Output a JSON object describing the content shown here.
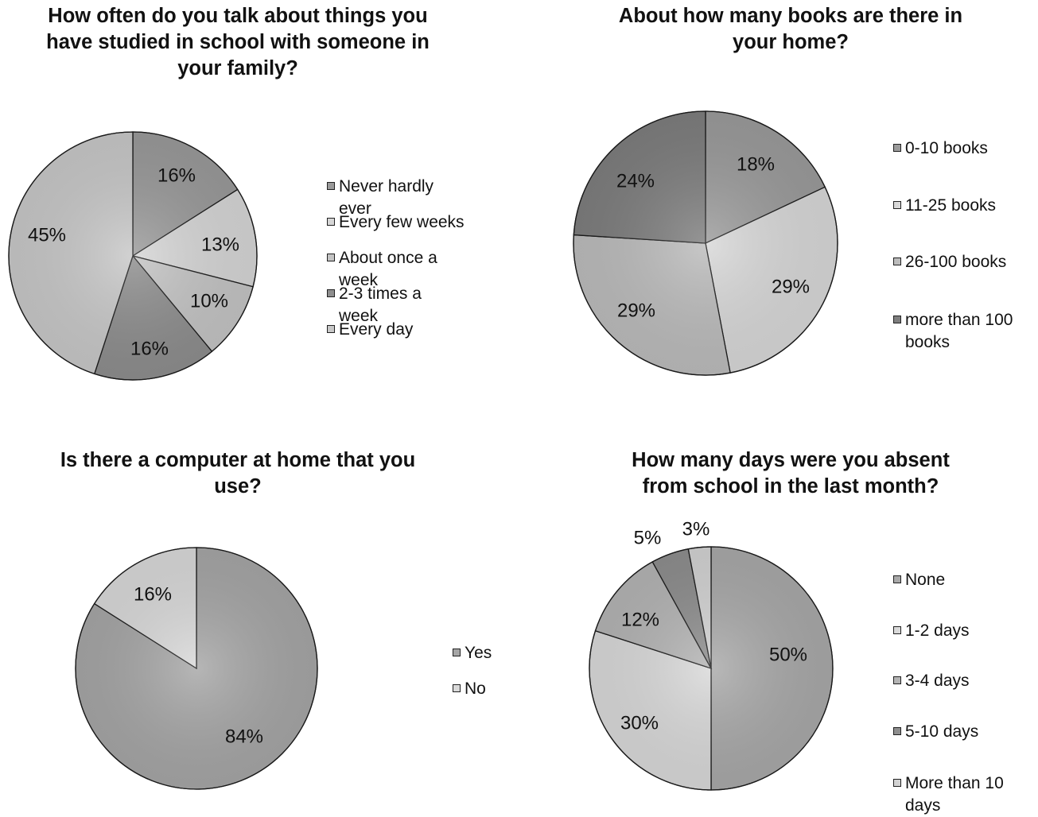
{
  "charts": [
    {
      "title_lines": [
        "How often do you talk about things you",
        "have studied in school with someone in",
        "your family?"
      ],
      "legend": [
        "Never hardly ever",
        "Every few weeks",
        "About once a week",
        "2-3 times a week",
        "Every day"
      ]
    },
    {
      "title_lines": [
        "About how many books are there in",
        "your home?"
      ],
      "legend": [
        "0-10 books",
        "11-25 books",
        "26-100 books",
        "more than 100 books"
      ]
    },
    {
      "title_lines": [
        "Is there a computer at home that you",
        "use?"
      ],
      "legend": [
        "Yes",
        "No"
      ]
    },
    {
      "title_lines": [
        "How many days were you absent",
        "from school in the last month?"
      ],
      "legend": [
        "None",
        "1-2 days",
        "3-4 days",
        "5-10 days",
        "More than 10 days"
      ]
    }
  ],
  "chart_data": [
    {
      "type": "pie",
      "title": "How often do you talk about things you have studied in school with someone in your family?",
      "categories": [
        "Never hardly ever",
        "Every few weeks",
        "About once a week",
        "2-3 times a week",
        "Every day"
      ],
      "values": [
        16,
        13,
        10,
        16,
        45
      ],
      "labels": [
        "16%",
        "13%",
        "10%",
        "16%",
        "45%"
      ],
      "colors": [
        "#9a9a9a",
        "#d6d6d6",
        "#c4c4c4",
        "#8e8e8e",
        "#c8c8c8"
      ],
      "legend_position": "right"
    },
    {
      "type": "pie",
      "title": "About how many books are there in your home?",
      "categories": [
        "0-10 books",
        "11-25 books",
        "26-100 books",
        "more than 100 books"
      ],
      "values": [
        18,
        29,
        29,
        24
      ],
      "labels": [
        "18%",
        "29%",
        "29%",
        "24%"
      ],
      "colors": [
        "#9b9b9b",
        "#d8d8d8",
        "#bcbcbc",
        "#7e7e7e"
      ],
      "legend_position": "right"
    },
    {
      "type": "pie",
      "title": "Is there a computer at home that you use?",
      "categories": [
        "Yes",
        "No"
      ],
      "values": [
        84,
        16
      ],
      "labels": [
        "84%",
        "16%"
      ],
      "colors": [
        "#a6a6a6",
        "#d9d9d9"
      ],
      "legend_position": "right"
    },
    {
      "type": "pie",
      "title": "How many days were you absent from school in the last month?",
      "categories": [
        "None",
        "1-2 days",
        "3-4 days",
        "5-10 days",
        "More than 10 days"
      ],
      "values": [
        50,
        30,
        12,
        5,
        3
      ],
      "labels": [
        "50%",
        "30%",
        "12%",
        "5%",
        "3%"
      ],
      "colors": [
        "#a9a9a9",
        "#d9d9d9",
        "#b4b4b4",
        "#8e8e8e",
        "#d3d3d3"
      ],
      "legend_position": "right"
    }
  ]
}
